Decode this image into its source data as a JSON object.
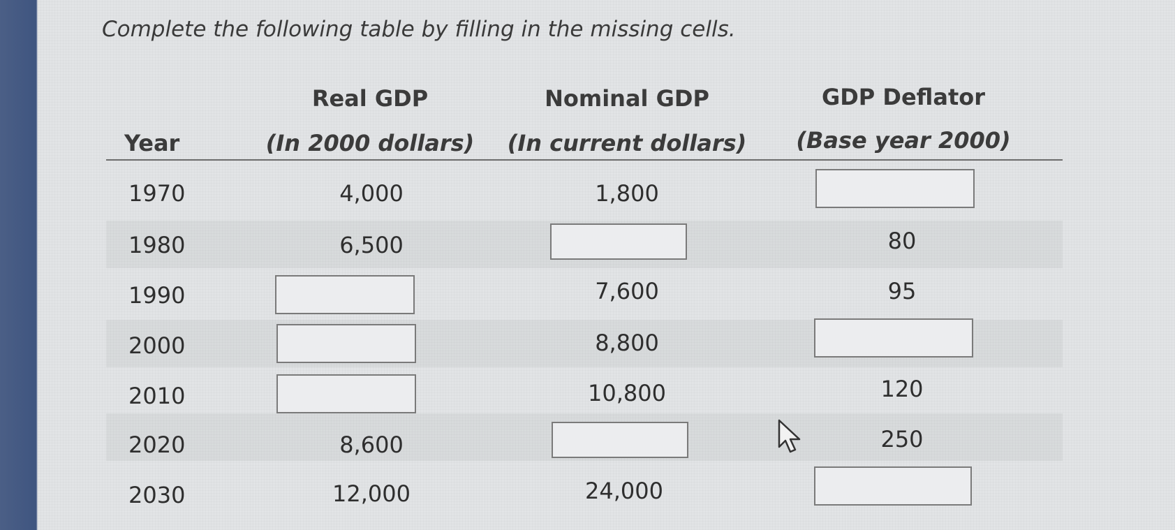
{
  "instruction": "Complete the following table by filling in the missing cells.",
  "table": {
    "headers": {
      "year": "Year",
      "real_gdp_line1": "Real GDP",
      "real_gdp_line2": "(In 2000 dollars)",
      "nominal_gdp_line1": "Nominal GDP",
      "nominal_gdp_line2": "(In current dollars)",
      "deflator_line1": "GDP Deflator",
      "deflator_line2": "(Base year 2000)"
    },
    "rows": [
      {
        "year": "1970",
        "real_gdp": "4,000",
        "nominal_gdp": "1,800",
        "deflator": ""
      },
      {
        "year": "1980",
        "real_gdp": "6,500",
        "nominal_gdp": "",
        "deflator": "80"
      },
      {
        "year": "1990",
        "real_gdp": "",
        "nominal_gdp": "7,600",
        "deflator": "95"
      },
      {
        "year": "2000",
        "real_gdp": "",
        "nominal_gdp": "8,800",
        "deflator": ""
      },
      {
        "year": "2010",
        "real_gdp": "",
        "nominal_gdp": "10,800",
        "deflator": "120"
      },
      {
        "year": "2020",
        "real_gdp": "8,600",
        "nominal_gdp": "",
        "deflator": "250"
      },
      {
        "year": "2030",
        "real_gdp": "12,000",
        "nominal_gdp": "24,000",
        "deflator": ""
      }
    ]
  },
  "colors": {
    "sidebar": "#3f5580",
    "background": "#e2e4e6",
    "text": "#2e2e2e",
    "box_border": "#7a7a7a"
  },
  "icons": {
    "cursor": "mouse-pointer-icon"
  }
}
